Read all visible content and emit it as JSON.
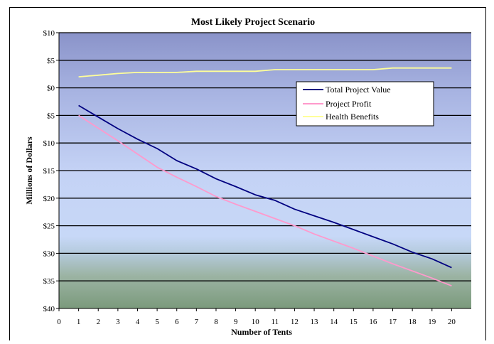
{
  "chart_data": {
    "type": "line",
    "title": "Most Likely Project Scenario",
    "xlabel": "Number of Tents",
    "ylabel": "Millions of Dollars",
    "x_ticks": [
      0,
      1,
      2,
      3,
      4,
      5,
      6,
      7,
      8,
      9,
      10,
      11,
      12,
      13,
      14,
      15,
      16,
      17,
      18,
      19,
      20
    ],
    "xlim": [
      0,
      21
    ],
    "ylim": [
      -40,
      10
    ],
    "y_ticks": [
      10,
      5,
      0,
      -5,
      -10,
      -15,
      -20,
      -25,
      -30,
      -35,
      -40
    ],
    "y_tick_labels": [
      "$10",
      "$5",
      "$0",
      "$5",
      "$10",
      "$15",
      "$20",
      "$25",
      "$30",
      "$35",
      "$40"
    ],
    "grid": "horizontal",
    "legend": "upper-right",
    "x": [
      1,
      2,
      3,
      4,
      5,
      6,
      7,
      8,
      9,
      10,
      11,
      12,
      13,
      14,
      15,
      16,
      17,
      18,
      19,
      20
    ],
    "series": [
      {
        "name": "Total Project Value",
        "color": "#000080",
        "values": [
          -3.2,
          -5.3,
          -7.4,
          -9.3,
          -11.0,
          -13.2,
          -14.7,
          -16.5,
          -17.9,
          -19.4,
          -20.4,
          -22.0,
          -23.2,
          -24.4,
          -25.7,
          -27.0,
          -28.3,
          -29.8,
          -31.0,
          -32.6
        ]
      },
      {
        "name": "Project Profit",
        "color": "#ff99cc",
        "values": [
          -5.0,
          -7.3,
          -9.6,
          -12.0,
          -14.4,
          -16.2,
          -17.9,
          -19.7,
          -21.1,
          -22.4,
          -23.7,
          -25.0,
          -26.5,
          -27.8,
          -29.1,
          -30.5,
          -31.9,
          -33.2,
          -34.5,
          -35.9
        ]
      },
      {
        "name": "Health Benefits",
        "color": "#ffff99",
        "values": [
          2.0,
          2.3,
          2.6,
          2.8,
          2.8,
          2.8,
          3.0,
          3.0,
          3.0,
          3.0,
          3.3,
          3.3,
          3.3,
          3.3,
          3.3,
          3.3,
          3.6,
          3.6,
          3.6,
          3.6
        ]
      }
    ]
  }
}
